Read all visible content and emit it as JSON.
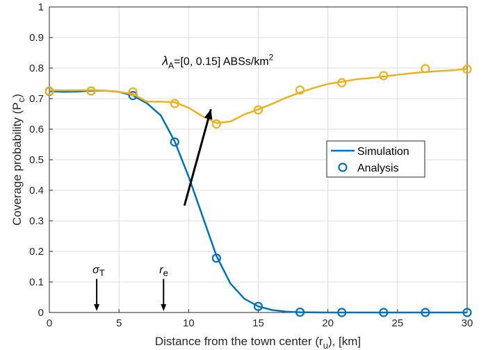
{
  "chart_data": {
    "type": "line",
    "xlabel": "Distance from the town center (r",
    "xlabel_sub": "u",
    "xlabel_tail": "), [km]",
    "ylabel": "Coverage probability (P",
    "ylabel_sub": "c",
    "ylabel_tail": ")",
    "xlim": [
      0,
      30
    ],
    "ylim": [
      0,
      1
    ],
    "xticks": [
      0,
      5,
      10,
      15,
      20,
      25,
      30
    ],
    "yticks": [
      0,
      0.1,
      0.2,
      0.3,
      0.4,
      0.5,
      0.6,
      0.7,
      0.8,
      0.9,
      1
    ],
    "grid": true,
    "legend_position": "right",
    "legend": [
      {
        "label": "Simulation",
        "style": "line"
      },
      {
        "label": "Analysis",
        "style": "marker"
      }
    ],
    "colors": {
      "blue": "#0072BD",
      "orange": "#EDB120"
    },
    "series": [
      {
        "color": "#0072BD",
        "sim": {
          "x": [
            0,
            1,
            2,
            3,
            4,
            5,
            6,
            7,
            8,
            9,
            10,
            11,
            12,
            13,
            14,
            15,
            16,
            17,
            18,
            20,
            22,
            24,
            26,
            28,
            30
          ],
          "y": [
            0.724,
            0.722,
            0.723,
            0.726,
            0.726,
            0.722,
            0.71,
            0.685,
            0.645,
            0.56,
            0.445,
            0.315,
            0.185,
            0.095,
            0.045,
            0.02,
            0.008,
            0.003,
            0.001,
            0.0,
            0.0,
            0.0,
            0.0,
            0.0,
            0.0
          ]
        },
        "analysis": {
          "x": [
            0,
            3,
            6,
            9,
            12,
            15,
            18,
            21,
            24,
            27,
            30
          ],
          "y": [
            0.724,
            0.725,
            0.71,
            0.558,
            0.178,
            0.02,
            0.001,
            0.0,
            0.0,
            0.0,
            0.0
          ]
        }
      },
      {
        "color": "#EDB120",
        "sim": {
          "x": [
            0,
            1,
            2,
            3,
            4,
            5,
            6,
            7,
            8,
            9,
            10,
            11,
            12,
            13,
            14,
            15,
            16,
            17,
            18,
            19,
            20,
            21,
            22,
            23,
            24,
            25,
            26,
            27,
            28,
            29,
            30
          ],
          "y": [
            0.727,
            0.727,
            0.727,
            0.728,
            0.726,
            0.722,
            0.715,
            0.69,
            0.69,
            0.688,
            0.67,
            0.642,
            0.62,
            0.625,
            0.648,
            0.665,
            0.683,
            0.703,
            0.72,
            0.735,
            0.748,
            0.755,
            0.763,
            0.767,
            0.772,
            0.778,
            0.783,
            0.787,
            0.79,
            0.793,
            0.797
          ]
        },
        "analysis": {
          "x": [
            0,
            3,
            6,
            9,
            12,
            15,
            18,
            21,
            24,
            27,
            30
          ],
          "y": [
            0.725,
            0.725,
            0.722,
            0.684,
            0.617,
            0.663,
            0.728,
            0.752,
            0.775,
            0.798,
            0.796
          ]
        }
      }
    ],
    "annotation": {
      "text_prefix": "λ",
      "text_sub": "A",
      "text_main": "=[0, 0.15] ABSs/km",
      "text_sup": "2",
      "arrow_from": [
        9.7,
        0.35
      ],
      "arrow_to": [
        11.6,
        0.665
      ]
    },
    "markers": [
      {
        "symbol": "σ",
        "sub": "T",
        "x": 3.4
      },
      {
        "symbol": "r",
        "sub": "e",
        "x": 8.2
      }
    ]
  }
}
